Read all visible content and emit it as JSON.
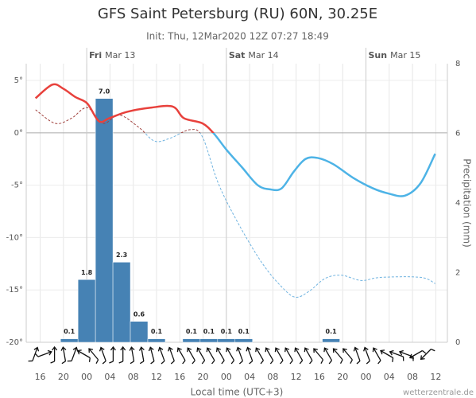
{
  "chart_data": {
    "type": "meteogram",
    "title": "GFS Saint Petersburg (RU) 60N, 30.25E",
    "subtitle": "Init: Thu, 12Mar2020 12Z 07:27 18:49",
    "x_label": "Local time (UTC+3)",
    "y2_label": "Precipitation (mm)",
    "credit": "wetterzentrale.de",
    "xlim": [
      13.6,
      86
    ],
    "xticks": [
      16,
      20,
      {
        "value": 24,
        "label": "00"
      },
      {
        "value": 28,
        "label": "04"
      },
      {
        "value": 32,
        "label": "08"
      },
      {
        "value": 36,
        "label": "12"
      },
      {
        "value": 40,
        "label": "16"
      },
      {
        "value": 44,
        "label": "20"
      },
      {
        "value": 48,
        "label": "00"
      },
      {
        "value": 52,
        "label": "04"
      },
      {
        "value": 56,
        "label": "08"
      },
      {
        "value": 60,
        "label": "12"
      },
      {
        "value": 64,
        "label": "16"
      },
      {
        "value": 68,
        "label": "20"
      },
      {
        "value": 72,
        "label": "00"
      },
      {
        "value": 76,
        "label": "04"
      },
      {
        "value": 80,
        "label": "08"
      },
      {
        "value": 84,
        "label": "12"
      }
    ],
    "days": [
      {
        "value": 24,
        "day": "Fri",
        "date": "Mar 13"
      },
      {
        "value": 48,
        "day": "Sat",
        "date": "Mar 14"
      },
      {
        "value": 72,
        "day": "Sun",
        "date": "Mar 15"
      }
    ],
    "ylim": [
      -20,
      6.6
    ],
    "yticks": [
      {
        "value": 5,
        "label": "5°"
      },
      {
        "value": 0,
        "label": "0°"
      },
      {
        "value": -5,
        "label": "-5°"
      },
      {
        "value": -10,
        "label": "-10°"
      },
      {
        "value": -15,
        "label": "-15°"
      },
      {
        "value": -20,
        "label": "-20°"
      }
    ],
    "y2lim": [
      0,
      8
    ],
    "y2ticks": [
      0,
      2,
      4,
      6,
      8
    ],
    "grid": true,
    "series": [
      {
        "kind": "line",
        "color": "#e8413c",
        "color_below_zero": "#4db3e6",
        "dashed": false,
        "x": [
          15.2,
          18.1,
          20,
          22.1,
          24.1,
          26.1,
          27.9,
          30.9,
          35,
          38.8,
          40.7,
          43.9,
          45.9,
          48,
          50.7,
          53.4,
          55.5,
          57.5,
          59.6,
          61.6,
          63.7,
          66.4,
          69.8,
          73.2,
          75.9,
          78.7,
          81.4,
          83.9
        ],
        "values": [
          3.3,
          4.6,
          4.2,
          3.4,
          2.8,
          1.1,
          1.4,
          2.0,
          2.4,
          2.5,
          1.4,
          0.9,
          -0.1,
          -1.6,
          -3.3,
          -5.0,
          -5.4,
          -5.3,
          -3.7,
          -2.5,
          -2.4,
          -3.0,
          -4.3,
          -5.3,
          -5.8,
          -6.0,
          -4.8,
          -2.0
        ]
      },
      {
        "kind": "line",
        "color": "#a0403c",
        "color_below_zero": "#6fb3e0",
        "dashed": true,
        "x": [
          15.2,
          18.6,
          21.4,
          24.1,
          26.8,
          29.6,
          33,
          35.7,
          38.4,
          41.8,
          43.9,
          46.6,
          50,
          54.1,
          57.5,
          59.9,
          62.3,
          65,
          67.8,
          71.2,
          74.6,
          81.4,
          83.9
        ],
        "values": [
          2.2,
          0.9,
          1.4,
          2.4,
          0.9,
          1.7,
          0.5,
          -0.8,
          -0.5,
          0.3,
          -0.4,
          -4.8,
          -8.6,
          -12.4,
          -14.7,
          -15.7,
          -15.1,
          -13.9,
          -13.6,
          -14.1,
          -13.8,
          -13.8,
          -14.4
        ]
      },
      {
        "kind": "bar",
        "axis": "y2",
        "color": "#4682b4",
        "width": 3,
        "x": [
          21,
          24,
          27,
          30,
          33,
          36,
          42,
          45,
          48,
          51,
          66
        ],
        "values": [
          0.1,
          1.8,
          7.0,
          2.3,
          0.6,
          0.1,
          0.1,
          0.1,
          0.1,
          0.1,
          0.1
        ],
        "value_labels": [
          "0.1",
          "1.8",
          "7.0",
          "2.3",
          "0.6",
          "0.1",
          "0.1",
          "0.1",
          "0.1",
          "0.1",
          "0.1"
        ]
      }
    ]
  }
}
